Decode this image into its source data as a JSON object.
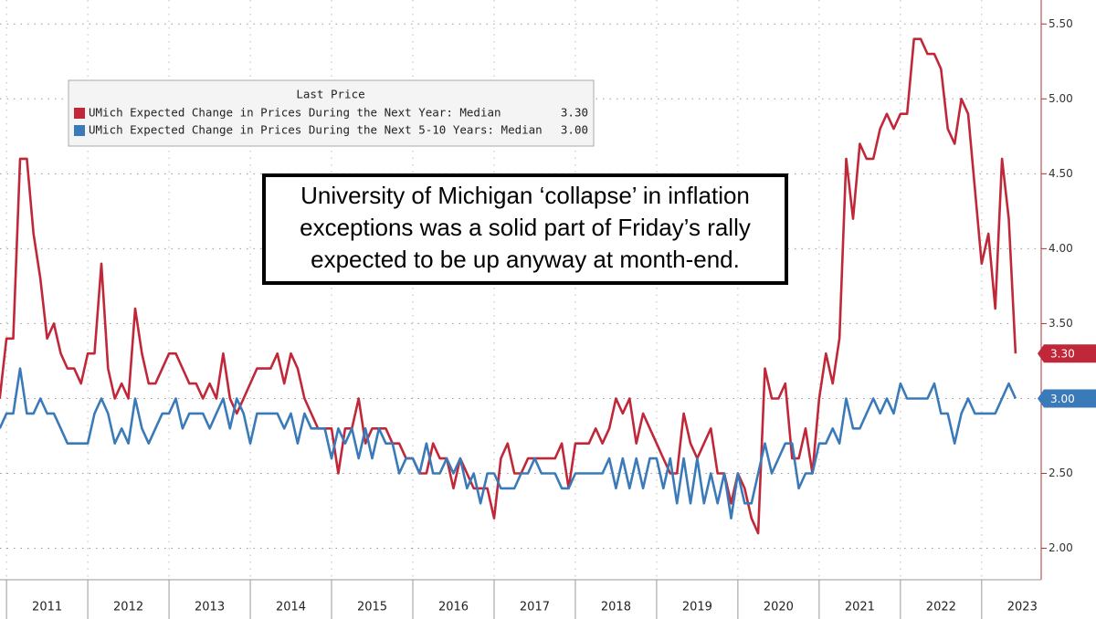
{
  "chart_data": {
    "type": "line",
    "annotation": [
      "University of Michigan ‘collapse’ in inflation",
      "exceptions was a solid part of Friday’s rally",
      "expected to be up anyway at month-end."
    ],
    "legend_title": "Last Price",
    "xlim": [
      2010.92,
      2023.62
    ],
    "xticks": [
      2011,
      2012,
      2013,
      2014,
      2015,
      2016,
      2017,
      2018,
      2019,
      2020,
      2021,
      2022,
      2023
    ],
    "ylim": [
      1.79,
      5.66
    ],
    "yticks": [
      {
        "value": 2,
        "label": "2.00"
      },
      {
        "value": 2.5,
        "label": "2.50"
      },
      {
        "value": 3,
        "label": "3.00"
      },
      {
        "value": 3.5,
        "label": "3.50"
      },
      {
        "value": 4,
        "label": "4.00"
      },
      {
        "value": 4.5,
        "label": "4.50"
      },
      {
        "value": 5,
        "label": "5.00"
      },
      {
        "value": 5.5,
        "label": "5.50"
      }
    ],
    "grid": true,
    "x": [
      2010.917,
      2011,
      2011.083,
      2011.167,
      2011.25,
      2011.333,
      2011.417,
      2011.5,
      2011.583,
      2011.667,
      2011.75,
      2011.833,
      2011.917,
      2012,
      2012.083,
      2012.167,
      2012.25,
      2012.333,
      2012.417,
      2012.5,
      2012.583,
      2012.667,
      2012.75,
      2012.833,
      2012.917,
      2013,
      2013.083,
      2013.167,
      2013.25,
      2013.333,
      2013.417,
      2013.5,
      2013.583,
      2013.667,
      2013.75,
      2013.833,
      2013.917,
      2014,
      2014.083,
      2014.167,
      2014.25,
      2014.333,
      2014.417,
      2014.5,
      2014.583,
      2014.667,
      2014.75,
      2014.833,
      2014.917,
      2015,
      2015.083,
      2015.167,
      2015.25,
      2015.333,
      2015.417,
      2015.5,
      2015.583,
      2015.667,
      2015.75,
      2015.833,
      2015.917,
      2016,
      2016.083,
      2016.167,
      2016.25,
      2016.333,
      2016.417,
      2016.5,
      2016.583,
      2016.667,
      2016.75,
      2016.833,
      2016.917,
      2017,
      2017.083,
      2017.167,
      2017.25,
      2017.333,
      2017.417,
      2017.5,
      2017.583,
      2017.667,
      2017.75,
      2017.833,
      2017.917,
      2018,
      2018.083,
      2018.167,
      2018.25,
      2018.333,
      2018.417,
      2018.5,
      2018.583,
      2018.667,
      2018.75,
      2018.833,
      2018.917,
      2019,
      2019.083,
      2019.167,
      2019.25,
      2019.333,
      2019.417,
      2019.5,
      2019.583,
      2019.667,
      2019.75,
      2019.833,
      2019.917,
      2020,
      2020.083,
      2020.167,
      2020.25,
      2020.333,
      2020.417,
      2020.5,
      2020.583,
      2020.667,
      2020.75,
      2020.833,
      2020.917,
      2021,
      2021.083,
      2021.167,
      2021.25,
      2021.333,
      2021.417,
      2021.5,
      2021.583,
      2021.667,
      2021.75,
      2021.833,
      2021.917,
      2022,
      2022.083,
      2022.167,
      2022.25,
      2022.333,
      2022.417,
      2022.5,
      2022.583,
      2022.667,
      2022.75,
      2022.833,
      2022.917,
      2023,
      2023.083,
      2023.167,
      2023.25,
      2023.333,
      2023.417
    ],
    "series": [
      {
        "name": "UMich Expected Change in Prices During the Next Year: Median",
        "color": "#c0283a",
        "last_label": "3.30",
        "values": [
          3.0,
          3.4,
          3.4,
          4.6,
          4.6,
          4.1,
          3.8,
          3.4,
          3.5,
          3.3,
          3.2,
          3.2,
          3.1,
          3.3,
          3.3,
          3.9,
          3.2,
          3.0,
          3.1,
          3.0,
          3.6,
          3.3,
          3.1,
          3.1,
          3.2,
          3.3,
          3.3,
          3.2,
          3.1,
          3.1,
          3.0,
          3.1,
          3.0,
          3.3,
          3.0,
          2.9,
          3.0,
          3.1,
          3.2,
          3.2,
          3.2,
          3.3,
          3.1,
          3.3,
          3.2,
          3.0,
          2.9,
          2.8,
          2.8,
          2.8,
          2.5,
          2.8,
          2.8,
          3.0,
          2.7,
          2.8,
          2.8,
          2.8,
          2.7,
          2.7,
          2.6,
          2.6,
          2.5,
          2.5,
          2.7,
          2.6,
          2.6,
          2.4,
          2.6,
          2.5,
          2.4,
          2.4,
          2.4,
          2.2,
          2.6,
          2.7,
          2.5,
          2.5,
          2.6,
          2.6,
          2.6,
          2.6,
          2.6,
          2.7,
          2.4,
          2.7,
          2.7,
          2.7,
          2.8,
          2.7,
          2.8,
          3.0,
          2.9,
          3.0,
          2.7,
          2.9,
          2.8,
          2.7,
          2.6,
          2.5,
          2.5,
          2.9,
          2.7,
          2.6,
          2.7,
          2.8,
          2.5,
          2.5,
          2.3,
          2.5,
          2.4,
          2.2,
          2.1,
          3.2,
          3.0,
          3.0,
          3.1,
          2.6,
          2.6,
          2.8,
          2.5,
          3.0,
          3.3,
          3.1,
          3.4,
          4.6,
          4.2,
          4.7,
          4.6,
          4.6,
          4.8,
          4.9,
          4.8,
          4.9,
          4.9,
          5.4,
          5.4,
          5.3,
          5.3,
          5.2,
          4.8,
          4.7,
          5.0,
          4.9,
          4.4,
          3.9,
          4.1,
          3.6,
          4.6,
          4.2,
          3.3
        ]
      },
      {
        "name": "UMich Expected Change in Prices During the Next 5-10 Years: Median",
        "color": "#3a7ab8",
        "last_label": "3.00",
        "values": [
          2.8,
          2.9,
          2.9,
          3.2,
          2.9,
          2.9,
          3.0,
          2.9,
          2.9,
          2.8,
          2.7,
          2.7,
          2.7,
          2.7,
          2.9,
          3.0,
          2.9,
          2.7,
          2.8,
          2.7,
          3.0,
          2.8,
          2.7,
          2.8,
          2.9,
          2.9,
          3.0,
          2.8,
          2.9,
          2.9,
          2.9,
          2.8,
          2.9,
          3.0,
          2.8,
          3.0,
          2.9,
          2.7,
          2.9,
          2.9,
          2.9,
          2.9,
          2.8,
          2.9,
          2.7,
          2.9,
          2.8,
          2.8,
          2.8,
          2.6,
          2.8,
          2.7,
          2.8,
          2.6,
          2.8,
          2.6,
          2.8,
          2.7,
          2.7,
          2.5,
          2.6,
          2.6,
          2.5,
          2.7,
          2.5,
          2.5,
          2.6,
          2.5,
          2.6,
          2.4,
          2.5,
          2.3,
          2.5,
          2.5,
          2.4,
          2.4,
          2.4,
          2.5,
          2.5,
          2.6,
          2.5,
          2.5,
          2.5,
          2.4,
          2.4,
          2.5,
          2.5,
          2.5,
          2.5,
          2.5,
          2.6,
          2.4,
          2.6,
          2.4,
          2.6,
          2.4,
          2.6,
          2.6,
          2.4,
          2.6,
          2.3,
          2.6,
          2.3,
          2.6,
          2.3,
          2.5,
          2.3,
          2.5,
          2.2,
          2.5,
          2.3,
          2.3,
          2.5,
          2.7,
          2.5,
          2.6,
          2.7,
          2.7,
          2.4,
          2.5,
          2.5,
          2.7,
          2.7,
          2.8,
          2.7,
          3.0,
          2.8,
          2.8,
          2.9,
          3.0,
          2.9,
          3.0,
          2.9,
          3.1,
          3.0,
          3.0,
          3.0,
          3.0,
          3.1,
          2.9,
          2.9,
          2.7,
          2.9,
          3.0,
          2.9,
          2.9,
          2.9,
          2.9,
          3.0,
          3.1,
          3.0
        ]
      }
    ]
  }
}
